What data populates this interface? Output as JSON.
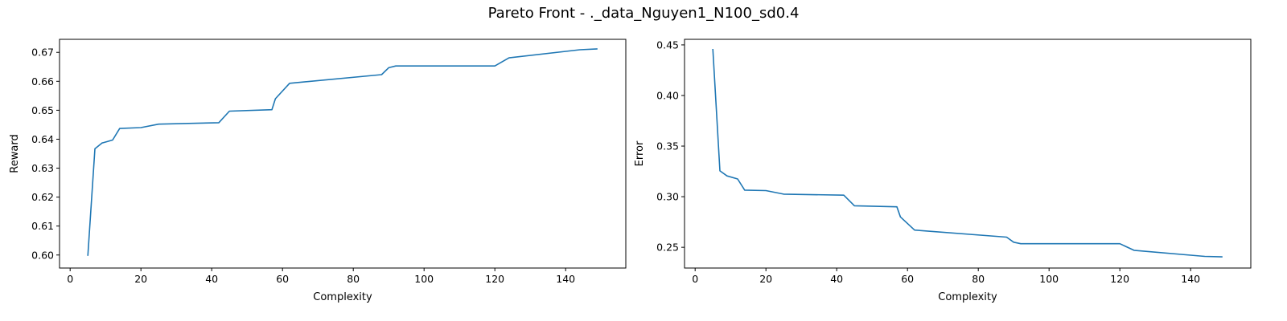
{
  "figure": {
    "title": "Pareto Front - ._data_Nguyen1_N100_sd0.4"
  },
  "chart_data": [
    {
      "type": "line",
      "title": "",
      "xlabel": "Complexity",
      "ylabel": "Reward",
      "xlim": [
        -3,
        157
      ],
      "ylim": [
        0.5955,
        0.6745
      ],
      "xticks": [
        0,
        20,
        40,
        60,
        80,
        100,
        120,
        140
      ],
      "yticks": [
        0.6,
        0.61,
        0.62,
        0.63,
        0.64,
        0.65,
        0.66,
        0.67
      ],
      "ytick_decimals": 2,
      "grid": false,
      "color": "#1f77b4",
      "x": [
        5,
        7,
        9,
        12,
        14,
        20,
        25,
        42,
        45,
        57,
        58,
        62,
        88,
        90,
        92,
        120,
        124,
        144,
        149
      ],
      "y": [
        0.5997,
        0.6367,
        0.6387,
        0.6397,
        0.6437,
        0.644,
        0.6452,
        0.6457,
        0.6497,
        0.6502,
        0.654,
        0.6593,
        0.6623,
        0.6647,
        0.6653,
        0.6653,
        0.6681,
        0.6709,
        0.6712
      ]
    },
    {
      "type": "line",
      "title": "",
      "xlabel": "Complexity",
      "ylabel": "Error",
      "xlim": [
        -3,
        157
      ],
      "ylim": [
        0.2295,
        0.4555
      ],
      "xticks": [
        0,
        20,
        40,
        60,
        80,
        100,
        120,
        140
      ],
      "yticks": [
        0.25,
        0.3,
        0.35,
        0.4,
        0.45
      ],
      "ytick_decimals": 2,
      "grid": false,
      "color": "#1f77b4",
      "x": [
        5,
        7,
        9,
        12,
        14,
        20,
        25,
        42,
        45,
        57,
        58,
        62,
        88,
        90,
        92,
        120,
        124,
        144,
        149
      ],
      "y": [
        0.446,
        0.3255,
        0.3205,
        0.3175,
        0.3065,
        0.306,
        0.3025,
        0.3015,
        0.291,
        0.29,
        0.28,
        0.267,
        0.26,
        0.255,
        0.2535,
        0.2535,
        0.247,
        0.241,
        0.2405
      ]
    }
  ]
}
